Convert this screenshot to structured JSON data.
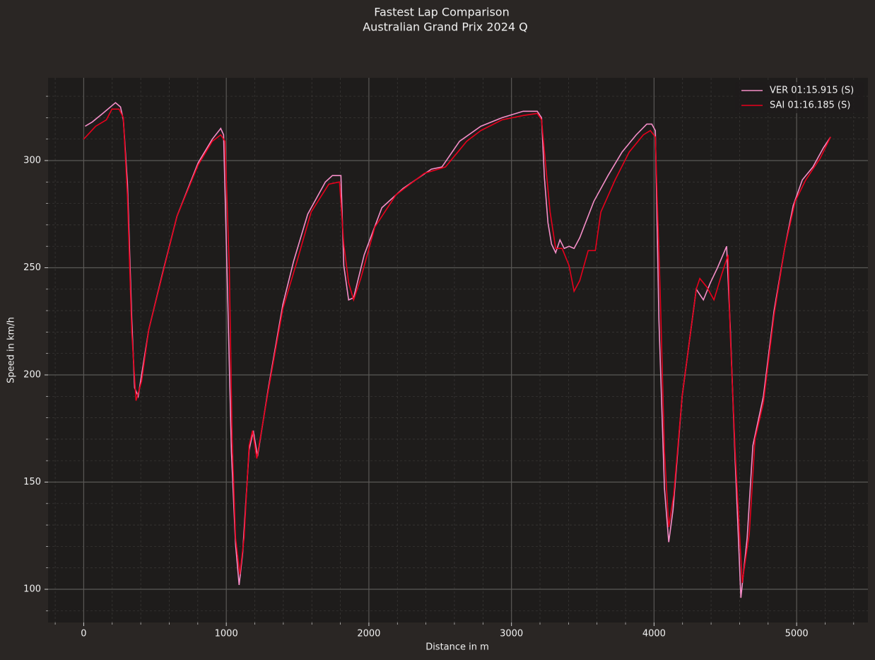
{
  "chart_data": {
    "type": "line",
    "title": "Fastest Lap Comparison",
    "subtitle": "Australian Grand Prix 2024 Q",
    "xlabel": "Distance in m",
    "ylabel": "Speed in km/h",
    "xlim": [
      -250,
      5500
    ],
    "ylim": [
      84.5,
      338.6
    ],
    "xticks": [
      0,
      1000,
      2000,
      3000,
      4000,
      5000
    ],
    "yticks": [
      100,
      150,
      200,
      250,
      300
    ],
    "xticks_minor": [
      -200,
      200,
      400,
      600,
      800,
      1200,
      1400,
      1600,
      1800,
      2200,
      2400,
      2600,
      2800,
      3200,
      3400,
      3600,
      3800,
      4200,
      4400,
      4600,
      4800,
      5200,
      5400
    ],
    "yticks_minor": [
      90,
      110,
      120,
      130,
      140,
      160,
      170,
      180,
      190,
      210,
      220,
      230,
      240,
      260,
      270,
      280,
      290,
      310,
      320,
      330
    ],
    "grid": true,
    "legend": "upper right",
    "series": [
      {
        "name": "VER 01:15.915 (S)",
        "color": "#f58ec8",
        "x": [
          10,
          60,
          134,
          223,
          258,
          278,
          307,
          337,
          357,
          382,
          456,
          555,
          654,
          803,
          902,
          961,
          981,
          1011,
          1036,
          1065,
          1090,
          1115,
          1160,
          1189,
          1219,
          1298,
          1397,
          1472,
          1571,
          1695,
          1744,
          1804,
          1824,
          1858,
          1893,
          1967,
          2091,
          2240,
          2438,
          2512,
          2636,
          2785,
          2934,
          3082,
          3181,
          3211,
          3231,
          3256,
          3281,
          3310,
          3340,
          3370,
          3404,
          3439,
          3479,
          3578,
          3677,
          3776,
          3875,
          3949,
          3984,
          4009,
          4034,
          4073,
          4103,
          4133,
          4197,
          4296,
          4346,
          4395,
          4445,
          4509,
          4534,
          4569,
          4609,
          4653,
          4693,
          4767,
          4842,
          4916,
          4976,
          5040,
          5114,
          5188,
          5238
        ],
        "values": [
          316,
          318,
          322,
          327,
          325,
          319,
          289,
          226,
          194,
          190,
          221,
          248,
          274,
          299,
          310,
          315,
          312,
          233,
          164,
          121,
          102,
          117,
          165,
          174,
          162,
          195,
          233,
          253,
          275,
          290,
          293,
          293,
          251,
          235,
          236,
          256,
          278,
          287,
          296,
          297,
          309,
          316,
          320,
          323,
          323,
          320,
          292,
          271,
          261,
          257,
          263,
          259,
          260,
          259,
          264,
          281,
          293,
          304,
          312,
          317,
          317,
          314,
          226,
          147,
          122,
          137,
          190,
          240,
          235,
          243,
          250,
          260,
          223,
          160,
          96,
          124,
          167,
          190,
          230,
          259,
          279,
          291,
          297,
          306,
          311
        ]
      },
      {
        "name": "SAI 01:16.185 (S)",
        "color": "#e8001c",
        "x": [
          0,
          84,
          159,
          198,
          248,
          278,
          307,
          337,
          367,
          406,
          456,
          654,
          803,
          902,
          961,
          991,
          1021,
          1041,
          1065,
          1095,
          1125,
          1160,
          1184,
          1214,
          1298,
          1397,
          1496,
          1595,
          1719,
          1794,
          1824,
          1858,
          1893,
          1943,
          2042,
          2190,
          2388,
          2537,
          2686,
          2785,
          2934,
          3082,
          3181,
          3211,
          3241,
          3271,
          3310,
          3355,
          3404,
          3439,
          3479,
          3538,
          3588,
          3627,
          3727,
          3826,
          3925,
          3974,
          4009,
          4044,
          4073,
          4103,
          4138,
          4197,
          4296,
          4321,
          4370,
          4420,
          4470,
          4519,
          4534,
          4569,
          4618,
          4668,
          4708,
          4767,
          4842,
          4916,
          4990,
          5064,
          5164,
          5238
        ],
        "values": [
          310,
          316,
          319,
          324,
          324,
          320,
          283,
          220,
          188,
          197,
          221,
          274,
          298,
          309,
          312,
          309,
          250,
          170,
          124,
          107,
          124,
          167,
          174,
          161,
          194,
          231,
          253,
          276,
          289,
          290,
          261,
          243,
          235,
          245,
          269,
          284,
          294,
          297,
          309,
          314,
          319,
          321,
          322,
          319,
          297,
          276,
          259,
          259,
          251,
          239,
          244,
          258,
          258,
          276,
          291,
          304,
          312,
          314,
          311,
          236,
          164,
          129,
          144,
          190,
          240,
          245,
          241,
          235,
          246,
          256,
          220,
          164,
          103,
          126,
          170,
          187,
          228,
          259,
          281,
          291,
          301,
          311
        ]
      }
    ]
  }
}
